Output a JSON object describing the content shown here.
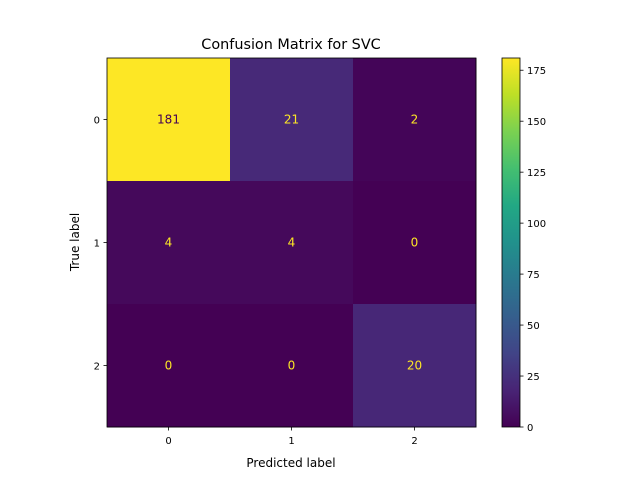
{
  "chart_data": {
    "type": "heatmap",
    "title": "Confusion Matrix for SVC",
    "xlabel": "Predicted label",
    "ylabel": "True label",
    "x_categories": [
      "0",
      "1",
      "2"
    ],
    "y_categories": [
      "0",
      "1",
      "2"
    ],
    "values": [
      [
        181,
        21,
        2
      ],
      [
        4,
        4,
        0
      ],
      [
        0,
        0,
        20
      ]
    ],
    "colormap": "viridis",
    "color_range": [
      0,
      181
    ],
    "colorbar_ticks": [
      0,
      25,
      50,
      75,
      100,
      125,
      150,
      175
    ],
    "grid": false,
    "label_colors": {
      "on_dark": "#fde725",
      "on_light": "#440154"
    }
  }
}
